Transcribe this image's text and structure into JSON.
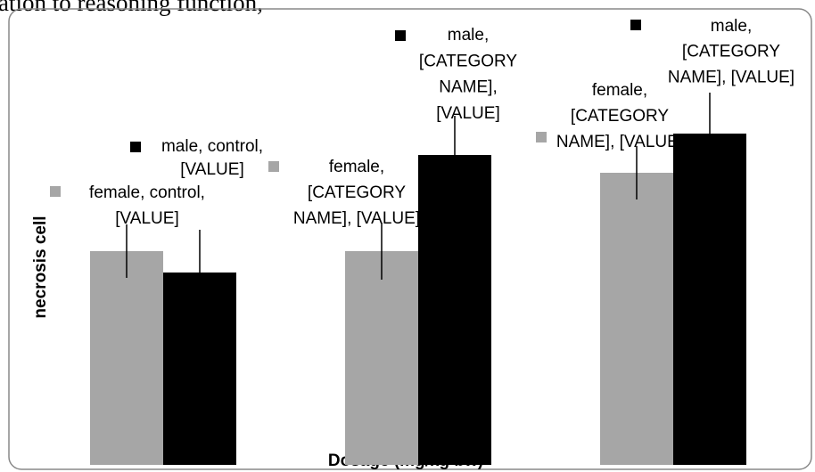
{
  "caption_fragment": "ation to reasoning function,",
  "chart_data": {
    "type": "bar",
    "x_label": "Dosage (mg/kg bw)",
    "y_label": "necrosis cell",
    "categories": [
      null,
      null,
      null
    ],
    "ylim": [
      0,
      12
    ],
    "series": [
      {
        "name": "female",
        "color": "#a6a6a6",
        "values": [
          6.0,
          6.0,
          8.2
        ],
        "errors": [
          0.75,
          0.8,
          0.75
        ],
        "labels": [
          [
            "female, control,",
            "[VALUE]"
          ],
          [
            "female,",
            "[CATEGORY",
            "NAME], [VALUE]"
          ],
          [
            "female,",
            "[CATEGORY",
            "NAME], [VALUE]"
          ]
        ]
      },
      {
        "name": "male",
        "color": "#000000",
        "values": [
          5.4,
          8.7,
          9.3
        ],
        "errors": [
          1.2,
          1.1,
          1.15
        ],
        "labels": [
          [
            "male, control,",
            "[VALUE]"
          ],
          [
            "male,",
            "[CATEGORY",
            "NAME],",
            "[VALUE]"
          ],
          [
            "male,",
            "[CATEGORY",
            "NAME], [VALUE]"
          ]
        ]
      }
    ]
  }
}
